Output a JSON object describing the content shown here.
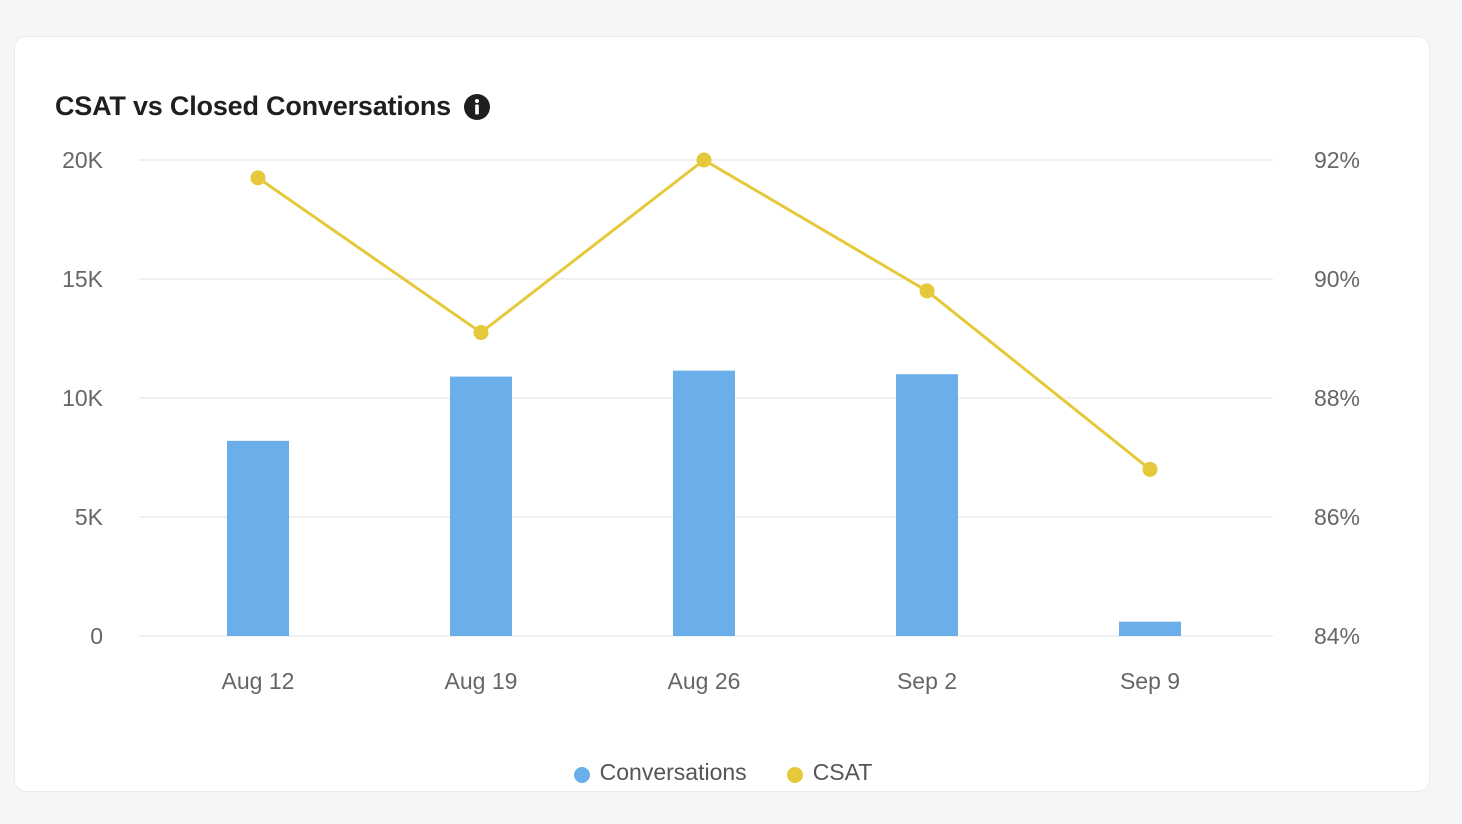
{
  "card": {
    "title": "CSAT vs Closed Conversations",
    "info_icon": "info-icon"
  },
  "colors": {
    "bar": "#6aaeea",
    "line": "#e6c93b",
    "grid": "#ececec",
    "axis_text": "#666666"
  },
  "chart_data": {
    "type": "bar",
    "title": "CSAT vs Closed Conversations",
    "categories": [
      "Aug 12",
      "Aug 19",
      "Aug 26",
      "Sep 2",
      "Sep 9"
    ],
    "series": [
      {
        "name": "Conversations",
        "type": "bar",
        "axis": "left",
        "values": [
          8200,
          10900,
          11150,
          11000,
          600
        ]
      },
      {
        "name": "CSAT",
        "type": "line",
        "axis": "right",
        "values": [
          91.7,
          89.1,
          92.0,
          89.8,
          86.8
        ]
      }
    ],
    "y_left": {
      "ylim": [
        0,
        20000
      ],
      "ticks": [
        "0",
        "5K",
        "10K",
        "15K",
        "20K"
      ]
    },
    "y_right": {
      "ylim": [
        84,
        92
      ],
      "ticks": [
        "84%",
        "86%",
        "88%",
        "90%",
        "92%"
      ]
    },
    "grid": true,
    "legend": "bottom-center"
  }
}
